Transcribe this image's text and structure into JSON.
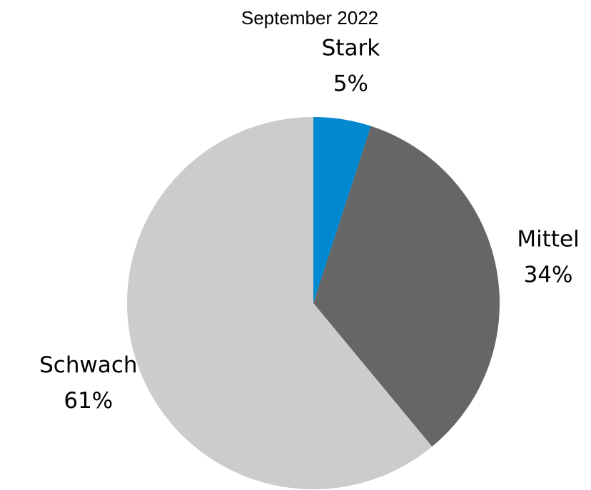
{
  "chart_data": {
    "type": "pie",
    "title": "September 2022",
    "categories": [
      "Stark",
      "Mittel",
      "Schwach"
    ],
    "values": [
      5,
      34,
      61
    ],
    "value_labels": [
      "5%",
      "34%",
      "61%"
    ],
    "colors": [
      "#0088d1",
      "#666666",
      "#cccccc"
    ]
  }
}
